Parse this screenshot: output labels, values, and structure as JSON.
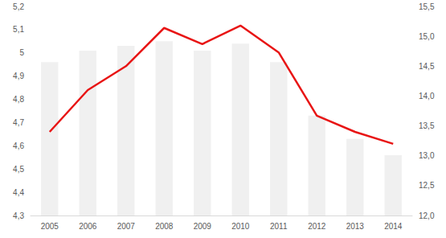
{
  "chart_data": {
    "type": "bar",
    "categories": [
      "2005",
      "2006",
      "2007",
      "2008",
      "2009",
      "2010",
      "2011",
      "2012",
      "2013",
      "2014"
    ],
    "series": [
      {
        "type": "bar",
        "color": "#f0f0f0",
        "axis": "y",
        "values": [
          4.96,
          5.01,
          5.03,
          5.05,
          5.01,
          5.04,
          4.96,
          4.73,
          4.63,
          4.56
        ]
      },
      {
        "type": "line",
        "color": "#e81515",
        "axis": "y2",
        "values": [
          13.4,
          14.1,
          14.5,
          15.14,
          14.87,
          15.18,
          14.73,
          13.67,
          13.4,
          13.2
        ]
      }
    ],
    "ylim": [
      4.3,
      5.2
    ],
    "yticks": [
      {
        "value": 4.3,
        "label": "4,3"
      },
      {
        "value": 4.4,
        "label": "4,4"
      },
      {
        "value": 4.5,
        "label": "4,5"
      },
      {
        "value": 4.6,
        "label": "4,6"
      },
      {
        "value": 4.7,
        "label": "4,7"
      },
      {
        "value": 4.8,
        "label": "4,8"
      },
      {
        "value": 4.9,
        "label": "4,9"
      },
      5,
      {
        "value": 5.1,
        "label": "5,1"
      },
      {
        "value": 5.2,
        "label": "5,2"
      }
    ],
    "y2lim": [
      12.0,
      15.5
    ],
    "y2ticks": [
      {
        "value": 12.0,
        "label": "12,0"
      },
      {
        "value": 12.5,
        "label": "12,5"
      },
      {
        "value": 13.0,
        "label": "13,0"
      },
      {
        "value": 13.5,
        "label": "13,5"
      },
      {
        "value": 14.0,
        "label": "14,0"
      },
      {
        "value": 14.5,
        "label": "14,5"
      },
      {
        "value": 15.0,
        "label": "15,0"
      },
      {
        "value": 15.5,
        "label": "15,5"
      }
    ],
    "grid": false
  }
}
